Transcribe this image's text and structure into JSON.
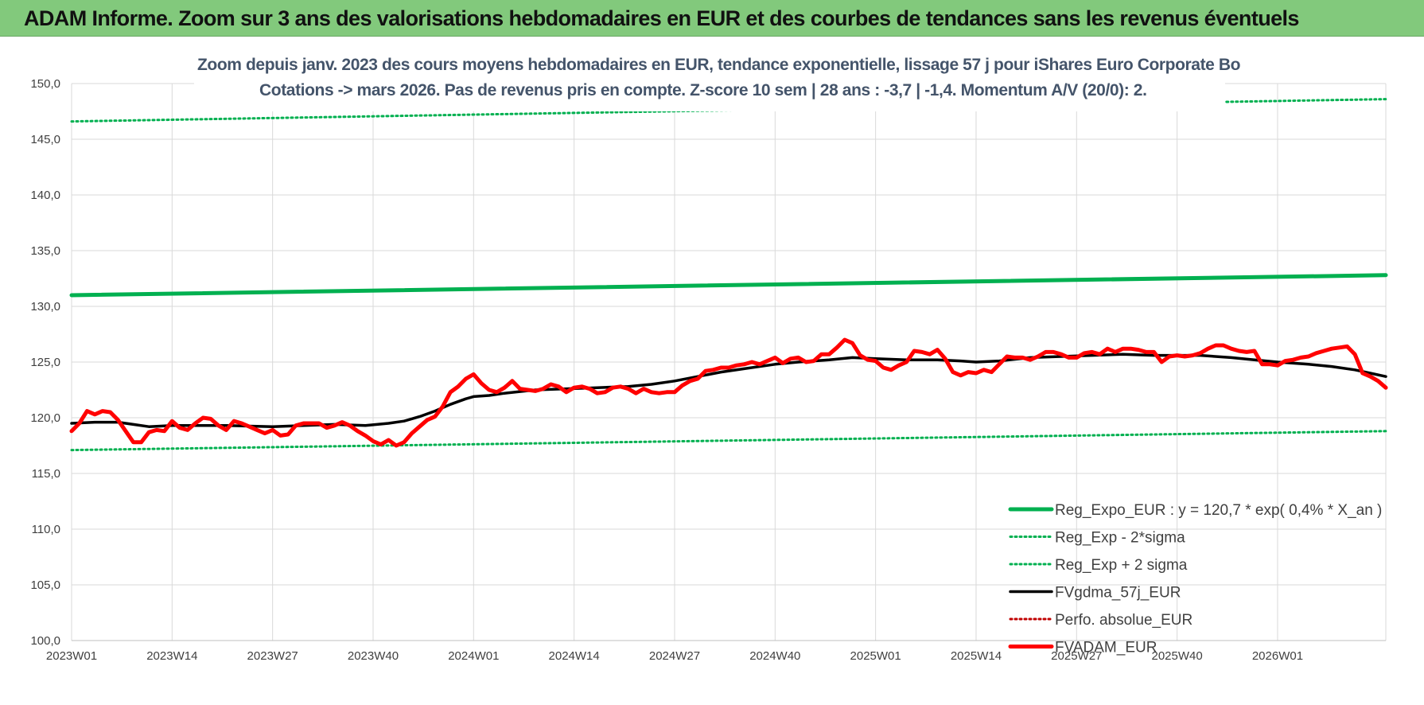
{
  "header": {
    "title": "ADAM Informe. Zoom sur 3 ans des valorisations hebdomadaires en EUR et des courbes de tendances sans les revenus éventuels"
  },
  "colors": {
    "banner": "#82c97c",
    "reg_expo": "#00b050",
    "fvgdma": "#000000",
    "fvadam": "#ff0000",
    "perfo": "#c00000"
  },
  "chart_data": {
    "type": "line",
    "title_line1": "Zoom depuis janv. 2023 des cours moyens hebdomadaires en EUR, tendance exponentielle, lissage 57 j pour iShares Euro Corporate Bo",
    "title_line2": "Cotations -> mars 2026. Pas de revenus pris en compte. Z-score 10 sem | 28 ans : -3,7 | -1,4. Momentum A/V (20/0): 2.",
    "ylim": [
      100,
      150
    ],
    "y_ticks": [
      "100,0",
      "105,0",
      "110,0",
      "115,0",
      "120,0",
      "125,0",
      "130,0",
      "135,0",
      "140,0",
      "145,0",
      "150,0"
    ],
    "x_ticks": [
      "2023W01",
      "2023W14",
      "2023W27",
      "2023W40",
      "2024W01",
      "2024W14",
      "2024W27",
      "2024W40",
      "2025W01",
      "2025W14",
      "2025W27",
      "2025W40",
      "2026W01"
    ],
    "x_tick_weeks": [
      0,
      13,
      26,
      39,
      52,
      65,
      78,
      91,
      104,
      117,
      130,
      143,
      156
    ],
    "n_weeks": 171,
    "grid": "vertical and horizontal",
    "legend_position": "bottom-right",
    "series": [
      {
        "name": "Reg_Expo_EUR : y = 120,7 * exp( 0,4% *  X_an )",
        "style": "solid-thick",
        "color": "#00b050",
        "points": [
          [
            0,
            131.0
          ],
          [
            170,
            132.8
          ]
        ]
      },
      {
        "name": "Reg_Exp - 2*sigma",
        "style": "dotted",
        "color": "#00b050",
        "points": [
          [
            0,
            117.1
          ],
          [
            170,
            118.8
          ]
        ]
      },
      {
        "name": "Reg_Exp + 2 sigma",
        "style": "dotted",
        "color": "#00b050",
        "points": [
          [
            0,
            146.6
          ],
          [
            170,
            148.6
          ]
        ]
      },
      {
        "name": "FVgdma_57j_EUR",
        "style": "solid",
        "color": "#000000",
        "points": [
          [
            0,
            119.5
          ],
          [
            3,
            119.6
          ],
          [
            6,
            119.6
          ],
          [
            8,
            119.4
          ],
          [
            10,
            119.2
          ],
          [
            13,
            119.3
          ],
          [
            16,
            119.3
          ],
          [
            20,
            119.3
          ],
          [
            26,
            119.2
          ],
          [
            30,
            119.3
          ],
          [
            34,
            119.4
          ],
          [
            38,
            119.3
          ],
          [
            41,
            119.5
          ],
          [
            43,
            119.7
          ],
          [
            45,
            120.1
          ],
          [
            47,
            120.6
          ],
          [
            49,
            121.2
          ],
          [
            51,
            121.7
          ],
          [
            52,
            121.9
          ],
          [
            54,
            122.0
          ],
          [
            56,
            122.2
          ],
          [
            60,
            122.5
          ],
          [
            64,
            122.6
          ],
          [
            68,
            122.7
          ],
          [
            72,
            122.8
          ],
          [
            75,
            123.0
          ],
          [
            78,
            123.3
          ],
          [
            81,
            123.7
          ],
          [
            84,
            124.1
          ],
          [
            87,
            124.4
          ],
          [
            91,
            124.8
          ],
          [
            94,
            125.0
          ],
          [
            98,
            125.2
          ],
          [
            101,
            125.4
          ],
          [
            104,
            125.3
          ],
          [
            108,
            125.2
          ],
          [
            112,
            125.2
          ],
          [
            115,
            125.1
          ],
          [
            117,
            125.0
          ],
          [
            120,
            125.1
          ],
          [
            124,
            125.4
          ],
          [
            128,
            125.5
          ],
          [
            132,
            125.6
          ],
          [
            136,
            125.7
          ],
          [
            140,
            125.6
          ],
          [
            146,
            125.6
          ],
          [
            150,
            125.4
          ],
          [
            153,
            125.2
          ],
          [
            156,
            125.0
          ],
          [
            160,
            124.8
          ],
          [
            163,
            124.6
          ],
          [
            166,
            124.3
          ],
          [
            168,
            124.0
          ],
          [
            170,
            123.7
          ]
        ]
      },
      {
        "name": "Perfo. absolue_EUR",
        "style": "dotted",
        "color": "#c00000",
        "points": []
      },
      {
        "name": "FVADAM_EUR",
        "style": "solid-thick",
        "color": "#ff0000",
        "points": [
          [
            0,
            118.8
          ],
          [
            1,
            119.5
          ],
          [
            2,
            120.6
          ],
          [
            3,
            120.3
          ],
          [
            4,
            120.6
          ],
          [
            5,
            120.5
          ],
          [
            6,
            119.8
          ],
          [
            7,
            118.8
          ],
          [
            8,
            117.8
          ],
          [
            9,
            117.8
          ],
          [
            10,
            118.7
          ],
          [
            11,
            118.9
          ],
          [
            12,
            118.8
          ],
          [
            13,
            119.7
          ],
          [
            14,
            119.1
          ],
          [
            15,
            118.9
          ],
          [
            16,
            119.5
          ],
          [
            17,
            120.0
          ],
          [
            18,
            119.9
          ],
          [
            19,
            119.3
          ],
          [
            20,
            118.9
          ],
          [
            21,
            119.7
          ],
          [
            22,
            119.5
          ],
          [
            23,
            119.2
          ],
          [
            24,
            118.9
          ],
          [
            25,
            118.6
          ],
          [
            26,
            118.9
          ],
          [
            27,
            118.4
          ],
          [
            28,
            118.5
          ],
          [
            29,
            119.3
          ],
          [
            30,
            119.5
          ],
          [
            31,
            119.5
          ],
          [
            32,
            119.5
          ],
          [
            33,
            119.1
          ],
          [
            34,
            119.3
          ],
          [
            35,
            119.6
          ],
          [
            36,
            119.3
          ],
          [
            37,
            118.8
          ],
          [
            38,
            118.4
          ],
          [
            39,
            117.9
          ],
          [
            40,
            117.6
          ],
          [
            41,
            118.0
          ],
          [
            42,
            117.5
          ],
          [
            43,
            117.8
          ],
          [
            44,
            118.6
          ],
          [
            45,
            119.2
          ],
          [
            46,
            119.8
          ],
          [
            47,
            120.1
          ],
          [
            48,
            121.0
          ],
          [
            49,
            122.3
          ],
          [
            50,
            122.8
          ],
          [
            51,
            123.5
          ],
          [
            52,
            123.9
          ],
          [
            53,
            123.1
          ],
          [
            54,
            122.5
          ],
          [
            55,
            122.3
          ],
          [
            56,
            122.7
          ],
          [
            57,
            123.3
          ],
          [
            58,
            122.6
          ],
          [
            59,
            122.5
          ],
          [
            60,
            122.4
          ],
          [
            61,
            122.6
          ],
          [
            62,
            123.0
          ],
          [
            63,
            122.8
          ],
          [
            64,
            122.3
          ],
          [
            65,
            122.7
          ],
          [
            66,
            122.8
          ],
          [
            67,
            122.6
          ],
          [
            68,
            122.2
          ],
          [
            69,
            122.3
          ],
          [
            70,
            122.7
          ],
          [
            71,
            122.8
          ],
          [
            72,
            122.6
          ],
          [
            73,
            122.2
          ],
          [
            74,
            122.6
          ],
          [
            75,
            122.3
          ],
          [
            76,
            122.2
          ],
          [
            77,
            122.3
          ],
          [
            78,
            122.3
          ],
          [
            79,
            122.9
          ],
          [
            80,
            123.3
          ],
          [
            81,
            123.5
          ],
          [
            82,
            124.2
          ],
          [
            83,
            124.3
          ],
          [
            84,
            124.5
          ],
          [
            85,
            124.5
          ],
          [
            86,
            124.7
          ],
          [
            87,
            124.8
          ],
          [
            88,
            125.0
          ],
          [
            89,
            124.8
          ],
          [
            90,
            125.1
          ],
          [
            91,
            125.4
          ],
          [
            92,
            124.9
          ],
          [
            93,
            125.3
          ],
          [
            94,
            125.4
          ],
          [
            95,
            125.0
          ],
          [
            96,
            125.1
          ],
          [
            97,
            125.7
          ],
          [
            98,
            125.7
          ],
          [
            99,
            126.3
          ],
          [
            100,
            127.0
          ],
          [
            101,
            126.7
          ],
          [
            102,
            125.6
          ],
          [
            103,
            125.2
          ],
          [
            104,
            125.1
          ],
          [
            105,
            124.5
          ],
          [
            106,
            124.3
          ],
          [
            107,
            124.7
          ],
          [
            108,
            125.0
          ],
          [
            109,
            126.0
          ],
          [
            110,
            125.9
          ],
          [
            111,
            125.7
          ],
          [
            112,
            126.1
          ],
          [
            113,
            125.3
          ],
          [
            114,
            124.1
          ],
          [
            115,
            123.8
          ],
          [
            116,
            124.1
          ],
          [
            117,
            124.0
          ],
          [
            118,
            124.3
          ],
          [
            119,
            124.1
          ],
          [
            120,
            124.8
          ],
          [
            121,
            125.5
          ],
          [
            122,
            125.4
          ],
          [
            123,
            125.4
          ],
          [
            124,
            125.2
          ],
          [
            125,
            125.5
          ],
          [
            126,
            125.9
          ],
          [
            127,
            125.9
          ],
          [
            128,
            125.7
          ],
          [
            129,
            125.4
          ],
          [
            130,
            125.4
          ],
          [
            131,
            125.8
          ],
          [
            132,
            125.9
          ],
          [
            133,
            125.7
          ],
          [
            134,
            126.2
          ],
          [
            135,
            125.9
          ],
          [
            136,
            126.2
          ],
          [
            137,
            126.2
          ],
          [
            138,
            126.1
          ],
          [
            139,
            125.9
          ],
          [
            140,
            125.9
          ],
          [
            141,
            125.0
          ],
          [
            142,
            125.5
          ],
          [
            143,
            125.6
          ],
          [
            144,
            125.5
          ],
          [
            145,
            125.6
          ],
          [
            146,
            125.8
          ],
          [
            147,
            126.2
          ],
          [
            148,
            126.5
          ],
          [
            149,
            126.5
          ],
          [
            150,
            126.2
          ],
          [
            151,
            126.0
          ],
          [
            152,
            125.9
          ],
          [
            153,
            126.0
          ],
          [
            154,
            124.8
          ],
          [
            155,
            124.8
          ],
          [
            156,
            124.7
          ],
          [
            157,
            125.1
          ],
          [
            158,
            125.2
          ],
          [
            159,
            125.4
          ],
          [
            160,
            125.5
          ],
          [
            161,
            125.8
          ],
          [
            162,
            126.0
          ],
          [
            163,
            126.2
          ],
          [
            164,
            126.3
          ],
          [
            165,
            126.4
          ],
          [
            166,
            125.7
          ],
          [
            167,
            124.0
          ],
          [
            168,
            123.7
          ],
          [
            169,
            123.3
          ],
          [
            170,
            122.7
          ]
        ]
      }
    ]
  }
}
